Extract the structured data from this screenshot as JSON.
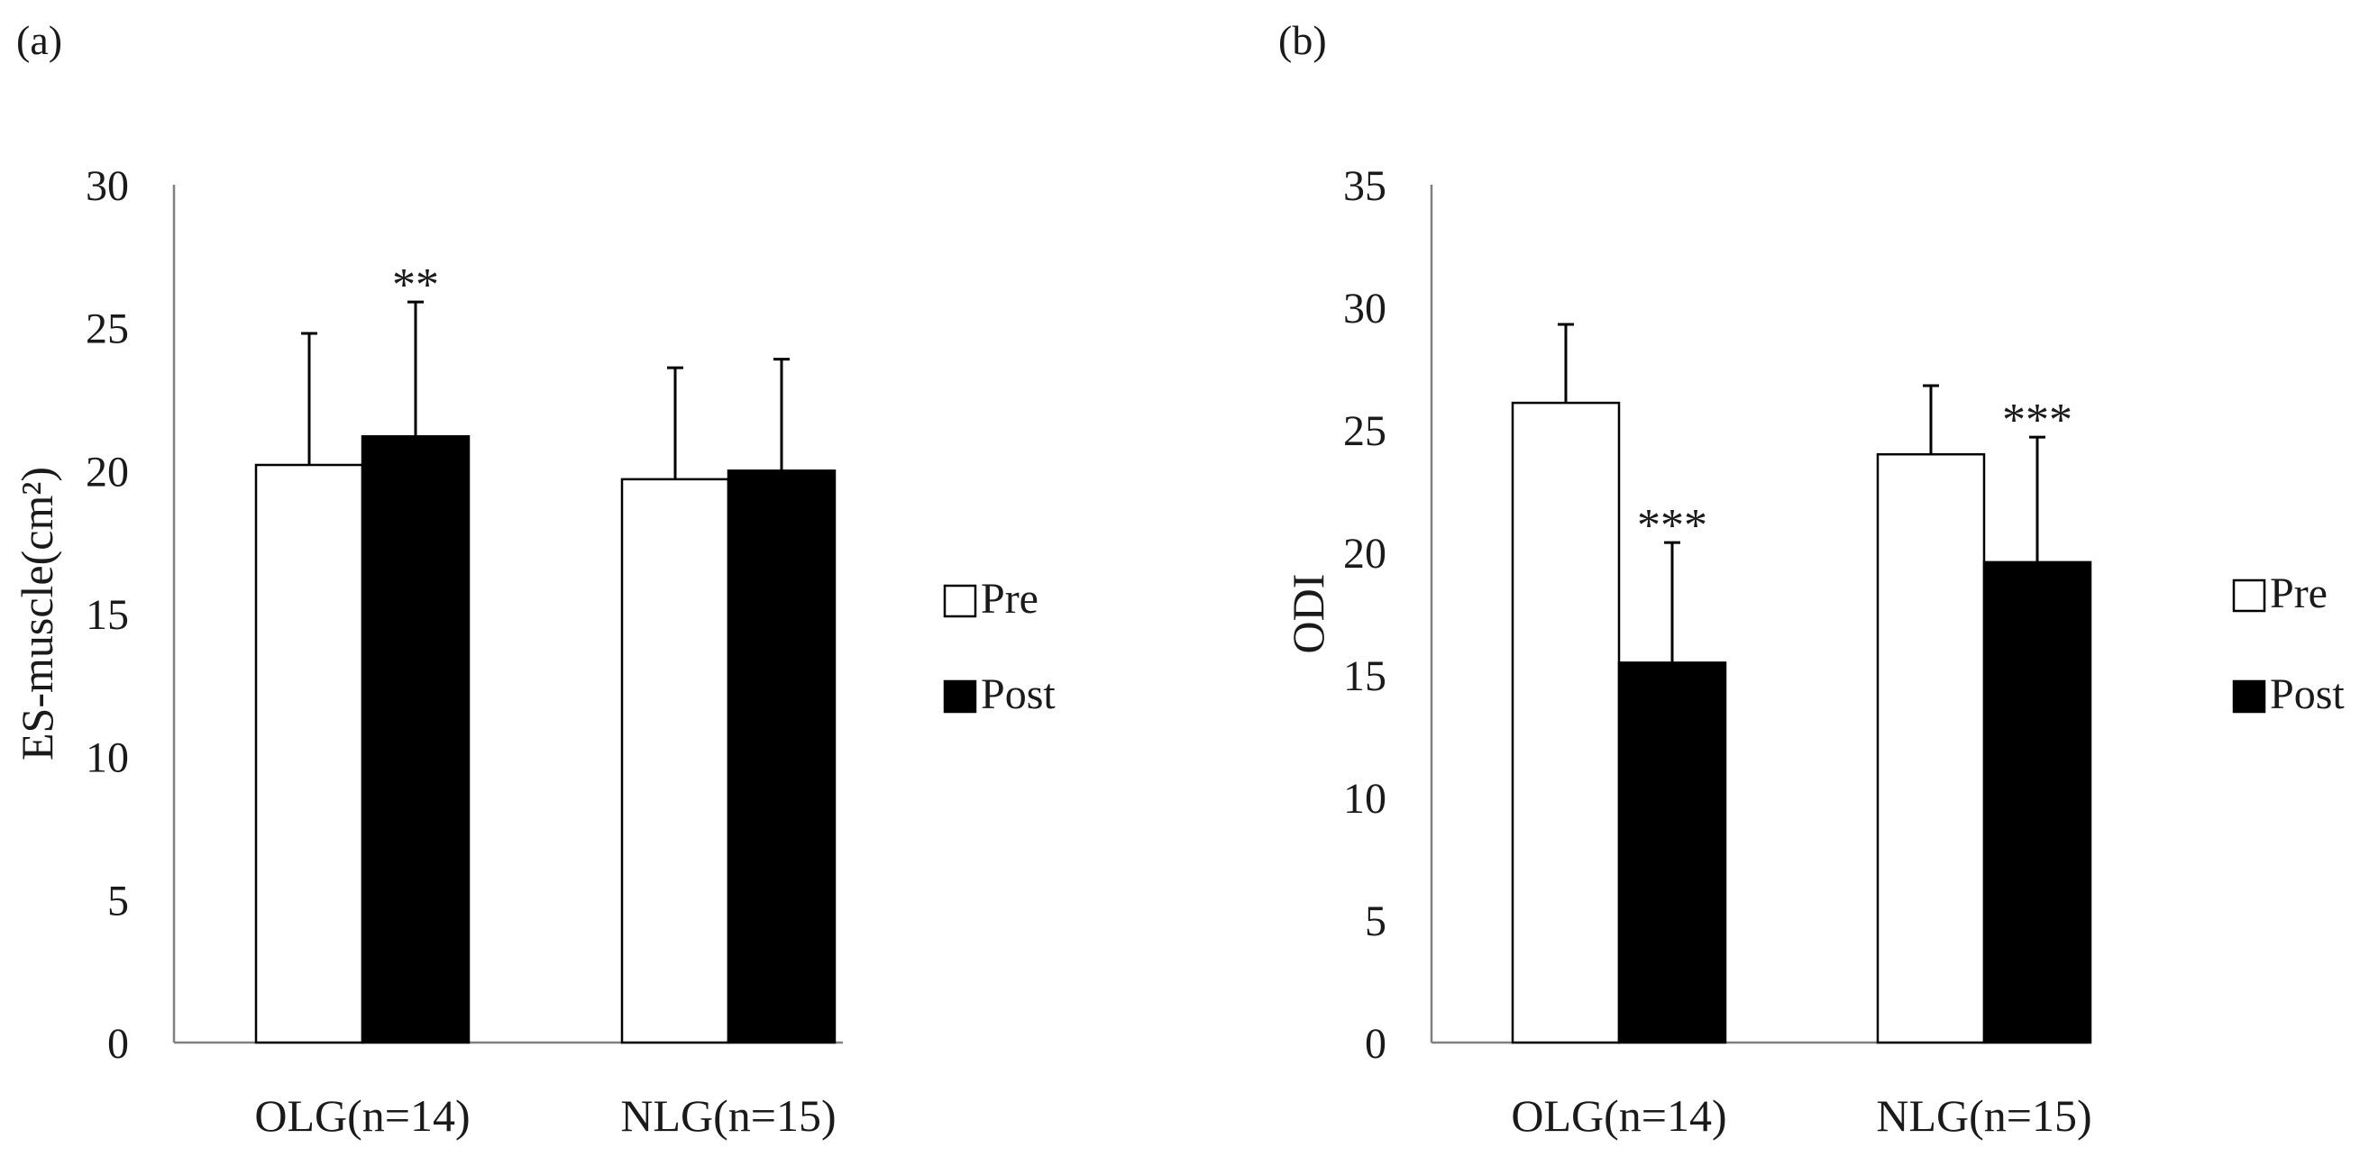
{
  "chart_data": [
    {
      "panel_label": "(a)",
      "type": "bar",
      "title": "",
      "xlabel": "",
      "ylabel": "ES-muscle(cm²)",
      "ylim": [
        0,
        30
      ],
      "yticks": [
        "0",
        "5",
        "10",
        "15",
        "20",
        "25",
        "30"
      ],
      "categories": [
        "OLG(n=14)",
        "NLG(n=15)"
      ],
      "series": [
        {
          "name": "Pre",
          "color": "#ffffff",
          "values": [
            20.2,
            19.7
          ],
          "error": [
            4.6,
            3.9
          ],
          "annotations": [
            "",
            ""
          ]
        },
        {
          "name": "Post",
          "color": "#000000",
          "values": [
            21.2,
            20.0
          ],
          "error": [
            4.7,
            3.9
          ],
          "annotations": [
            "**",
            ""
          ]
        }
      ],
      "legend": [
        "Pre",
        "Post"
      ],
      "legend_position": "right"
    },
    {
      "panel_label": "(b)",
      "type": "bar",
      "title": "",
      "xlabel": "",
      "ylabel": "ODI",
      "ylim": [
        0,
        35
      ],
      "yticks": [
        "0",
        "5",
        "10",
        "15",
        "20",
        "25",
        "30",
        "35"
      ],
      "categories": [
        "OLG(n=14)",
        "NLG(n=15)"
      ],
      "series": [
        {
          "name": "Pre",
          "color": "#ffffff",
          "values": [
            26.1,
            24.0
          ],
          "error": [
            3.2,
            2.8
          ],
          "annotations": [
            "",
            ""
          ]
        },
        {
          "name": "Post",
          "color": "#000000",
          "values": [
            15.5,
            19.6
          ],
          "error": [
            4.9,
            5.1
          ],
          "annotations": [
            "***",
            "***"
          ]
        }
      ],
      "legend": [
        "Pre",
        "Post"
      ],
      "legend_position": "right"
    }
  ]
}
